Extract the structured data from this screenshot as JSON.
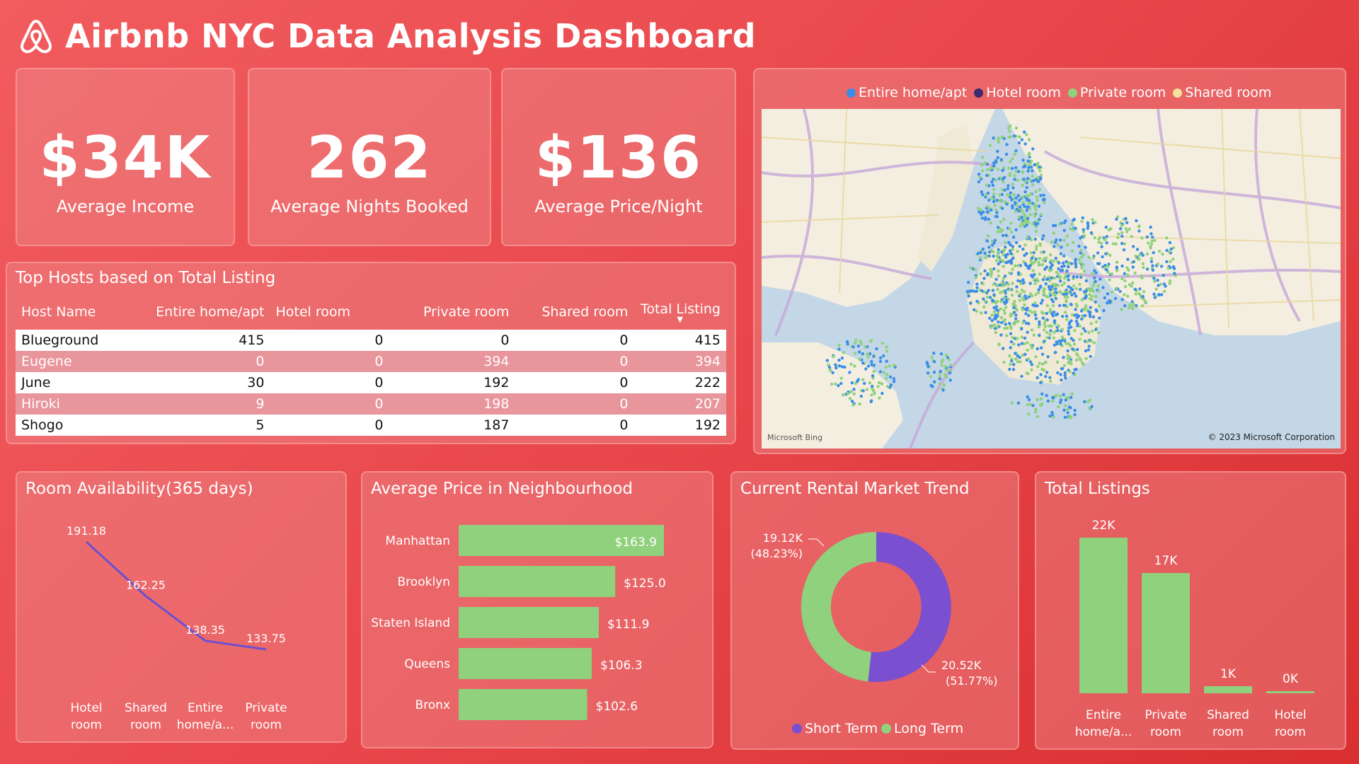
{
  "header": {
    "title": "Airbnb NYC Data Analysis Dashboard",
    "logo_icon": "airbnb-logo-icon"
  },
  "kpis": [
    {
      "value": "$34K",
      "label": "Average Income"
    },
    {
      "value": "262",
      "label": "Average Nights Booked"
    },
    {
      "value": "$136",
      "label": "Average Price/Night"
    }
  ],
  "map": {
    "legend": [
      {
        "label": "Entire home/apt",
        "color": "#3a8ee6"
      },
      {
        "label": "Hotel room",
        "color": "#3b2a6e"
      },
      {
        "label": "Private room",
        "color": "#8fd17c"
      },
      {
        "label": "Shared room",
        "color": "#f3e19c"
      }
    ],
    "attribution_left": "Microsoft Bing",
    "attribution_right": "© 2023 Microsoft Corporation"
  },
  "hosts_table": {
    "title": "Top Hosts based on Total Listing",
    "columns": [
      "Host Name",
      "Entire home/apt",
      "Hotel room",
      "Private room",
      "Shared room",
      "Total Listing"
    ],
    "sort_arrow": "▼",
    "rows": [
      [
        "Blueground",
        "415",
        "0",
        "0",
        "0",
        "415"
      ],
      [
        "Eugene",
        "0",
        "0",
        "394",
        "0",
        "394"
      ],
      [
        "June",
        "30",
        "0",
        "192",
        "0",
        "222"
      ],
      [
        "Hiroki",
        "9",
        "0",
        "198",
        "0",
        "207"
      ],
      [
        "Shogo",
        "5",
        "0",
        "187",
        "0",
        "192"
      ]
    ]
  },
  "chart_data": [
    {
      "type": "line",
      "title": "Room Availability(365 days)",
      "categories": [
        "Hotel room",
        "Shared room",
        "Entire home/a...",
        "Private room"
      ],
      "values": [
        191.18,
        162.25,
        138.35,
        133.75
      ],
      "value_labels": [
        "191.18",
        "162.25",
        "138.35",
        "133.75"
      ],
      "color": "#6c4fd1"
    },
    {
      "type": "bar",
      "orientation": "horizontal",
      "title": "Average Price in Neighbourhood",
      "categories": [
        "Manhattan",
        "Brooklyn",
        "Staten Island",
        "Queens",
        "Bronx"
      ],
      "values": [
        163.9,
        125.0,
        111.9,
        106.3,
        102.6
      ],
      "value_labels": [
        "$163.9",
        "$125.0",
        "$111.9",
        "$106.3",
        "$102.6"
      ],
      "color": "#8fd17c"
    },
    {
      "type": "pie",
      "variant": "donut",
      "title": "Current Rental Market Trend",
      "series": [
        {
          "name": "Short Term",
          "value": 20.52,
          "label": "20.52K",
          "pct": "(51.77%)",
          "color": "#7a4fd0"
        },
        {
          "name": "Long Term",
          "value": 19.12,
          "label": "19.12K",
          "pct": "(48.23%)",
          "color": "#8fd17c"
        }
      ]
    },
    {
      "type": "bar",
      "title": "Total Listings",
      "categories": [
        "Entire home/a...",
        "Private room",
        "Shared room",
        "Hotel room"
      ],
      "values": [
        22,
        17,
        1,
        0.1
      ],
      "value_labels": [
        "22K",
        "17K",
        "1K",
        "0K"
      ],
      "color": "#8fd17c"
    }
  ]
}
